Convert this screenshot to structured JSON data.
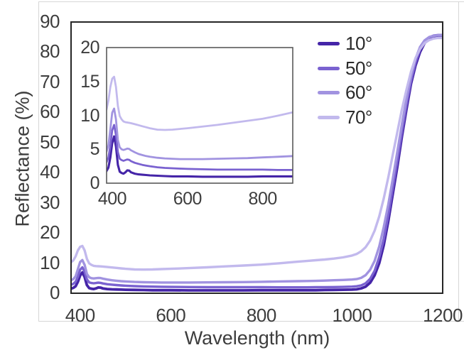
{
  "figure": {
    "background": "#ffffff",
    "frame_color": "#262626",
    "inset_frame_color": "#595959",
    "text_color": "#3d3d3d",
    "worksheet_line_color": "#d6d6d6"
  },
  "chart_data": {
    "type": "line",
    "title": "",
    "xlabel": "Wavelength (nm)",
    "ylabel": "Reflectance (%)",
    "legend": {
      "position": "top-right",
      "entries": [
        "10°",
        "50°",
        "60°",
        "70°"
      ]
    },
    "main_axis": {
      "xlim": [
        380,
        1200
      ],
      "ylim": [
        0,
        90
      ],
      "xticks": [
        400,
        600,
        800,
        1000,
        1200
      ],
      "yticks": [
        0,
        10,
        20,
        30,
        40,
        50,
        60,
        70,
        80,
        90
      ],
      "grid": false
    },
    "inset_axis": {
      "xlim": [
        385,
        880
      ],
      "ylim": [
        0,
        20
      ],
      "xticks": [
        400,
        600,
        800
      ],
      "yticks": [
        0,
        5,
        10,
        15,
        20
      ],
      "grid": false
    },
    "x_nm": [
      380,
      385,
      390,
      395,
      400,
      405,
      410,
      415,
      420,
      425,
      430,
      435,
      440,
      445,
      450,
      460,
      470,
      480,
      490,
      500,
      520,
      540,
      560,
      580,
      600,
      640,
      680,
      720,
      760,
      800,
      840,
      880,
      900,
      920,
      940,
      960,
      980,
      1000,
      1010,
      1020,
      1030,
      1040,
      1050,
      1060,
      1070,
      1080,
      1090,
      1100,
      1110,
      1120,
      1130,
      1140,
      1150,
      1160,
      1170,
      1180,
      1190,
      1200
    ],
    "series": [
      {
        "name": "10°",
        "color": "#4525a8",
        "line_width": 3.8,
        "values": [
          1.5,
          1.8,
          2.3,
          3.8,
          5.9,
          6.9,
          5.4,
          2.7,
          1.7,
          1.5,
          1.4,
          1.6,
          1.9,
          1.85,
          1.6,
          1.4,
          1.3,
          1.25,
          1.2,
          1.15,
          1.1,
          1.05,
          1.0,
          1.0,
          1.0,
          0.95,
          0.95,
          0.95,
          0.95,
          1.0,
          1.0,
          1.0,
          1.0,
          1.0,
          1.05,
          1.1,
          1.15,
          1.2,
          1.3,
          1.6,
          2.2,
          3.5,
          6.0,
          10.0,
          16.0,
          24.0,
          33.0,
          42.0,
          52.0,
          61.0,
          69.5,
          75.5,
          80.0,
          83.0,
          84.6,
          85.3,
          85.5,
          85.5
        ]
      },
      {
        "name": "50°",
        "color": "#7a62d0",
        "line_width": 3.4,
        "values": [
          2.8,
          3.1,
          3.8,
          5.5,
          7.8,
          8.6,
          7.1,
          4.6,
          3.6,
          3.4,
          3.3,
          3.4,
          3.5,
          3.45,
          3.25,
          3.0,
          2.85,
          2.7,
          2.6,
          2.5,
          2.35,
          2.25,
          2.2,
          2.15,
          2.1,
          2.05,
          2.0,
          2.0,
          2.0,
          2.0,
          1.95,
          1.95,
          1.95,
          2.0,
          2.0,
          2.05,
          2.1,
          2.2,
          2.3,
          2.6,
          3.3,
          4.8,
          7.5,
          12.0,
          18.0,
          26.0,
          35.0,
          44.0,
          53.5,
          62.5,
          70.5,
          76.5,
          81.0,
          83.5,
          84.9,
          85.5,
          85.7,
          85.7
        ]
      },
      {
        "name": "60°",
        "color": "#a193e0",
        "line_width": 3.4,
        "values": [
          4.3,
          4.7,
          5.6,
          8.0,
          10.4,
          11.0,
          9.4,
          6.4,
          5.3,
          5.0,
          4.9,
          5.0,
          5.1,
          5.05,
          4.85,
          4.55,
          4.3,
          4.15,
          4.0,
          3.9,
          3.75,
          3.65,
          3.6,
          3.55,
          3.55,
          3.55,
          3.6,
          3.65,
          3.7,
          3.8,
          3.9,
          4.0,
          4.05,
          4.1,
          4.2,
          4.3,
          4.4,
          4.55,
          4.7,
          5.1,
          6.0,
          7.8,
          10.8,
          15.5,
          22.0,
          29.5,
          38.0,
          47.0,
          56.0,
          64.5,
          72.0,
          77.8,
          81.7,
          83.9,
          85.0,
          85.4,
          85.6,
          85.6
        ]
      },
      {
        "name": "70°",
        "color": "#c2b9ed",
        "line_width": 3.4,
        "values": [
          10.3,
          10.9,
          12.2,
          14.2,
          15.4,
          15.7,
          14.2,
          11.4,
          9.9,
          9.4,
          9.1,
          9.0,
          8.95,
          8.9,
          8.85,
          8.7,
          8.55,
          8.4,
          8.25,
          8.1,
          7.9,
          7.85,
          7.9,
          8.0,
          8.1,
          8.35,
          8.6,
          8.9,
          9.2,
          9.5,
          9.95,
          10.45,
          10.7,
          10.95,
          11.2,
          11.5,
          11.9,
          12.5,
          13.0,
          13.9,
          15.3,
          17.5,
          20.8,
          25.5,
          31.5,
          38.5,
          46.0,
          53.5,
          61.0,
          67.5,
          73.5,
          78.0,
          81.0,
          83.0,
          84.0,
          84.5,
          84.7,
          84.7
        ]
      }
    ]
  }
}
